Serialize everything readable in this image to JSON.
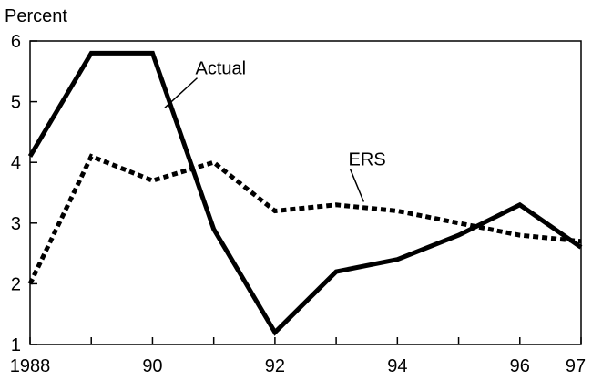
{
  "chart_data": {
    "type": "line",
    "title": "",
    "xlabel": "",
    "ylabel": "Percent",
    "x": [
      1988,
      1989,
      1990,
      1991,
      1992,
      1993,
      1994,
      1995,
      1996,
      1997
    ],
    "x_tick_values": [
      1988,
      1990,
      1992,
      1994,
      1996,
      1997
    ],
    "x_tick_labels": [
      "1988",
      "90",
      "92",
      "94",
      "96",
      "97"
    ],
    "y_ticks": [
      1,
      2,
      3,
      4,
      5,
      6
    ],
    "y_tick_labels": [
      "1",
      "2",
      "3",
      "4",
      "5",
      "6"
    ],
    "xlim": [
      1988,
      1997
    ],
    "ylim": [
      1,
      6
    ],
    "grid": false,
    "legend": "none",
    "series": [
      {
        "name": "Actual",
        "style": "solid",
        "color": "#000000",
        "values": [
          4.1,
          5.8,
          5.8,
          2.9,
          1.2,
          2.2,
          2.4,
          2.8,
          3.3,
          2.6
        ]
      },
      {
        "name": "ERS",
        "style": "dotted",
        "color": "#000000",
        "values": [
          2.0,
          4.1,
          3.7,
          4.0,
          3.2,
          3.3,
          3.2,
          3.0,
          2.8,
          2.7
        ]
      }
    ],
    "annotations": [
      {
        "text": "Actual",
        "series": "Actual",
        "label_x": 1990.7,
        "label_y": 5.45,
        "point_x": 1990.2,
        "point_y": 4.9
      },
      {
        "text": "ERS",
        "series": "ERS",
        "label_x": 1993.2,
        "label_y": 3.95,
        "point_x": 1993.45,
        "point_y": 3.35
      }
    ]
  }
}
